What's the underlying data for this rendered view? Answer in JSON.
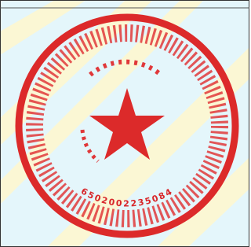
{
  "seal": {
    "number": "6502002235084"
  }
}
